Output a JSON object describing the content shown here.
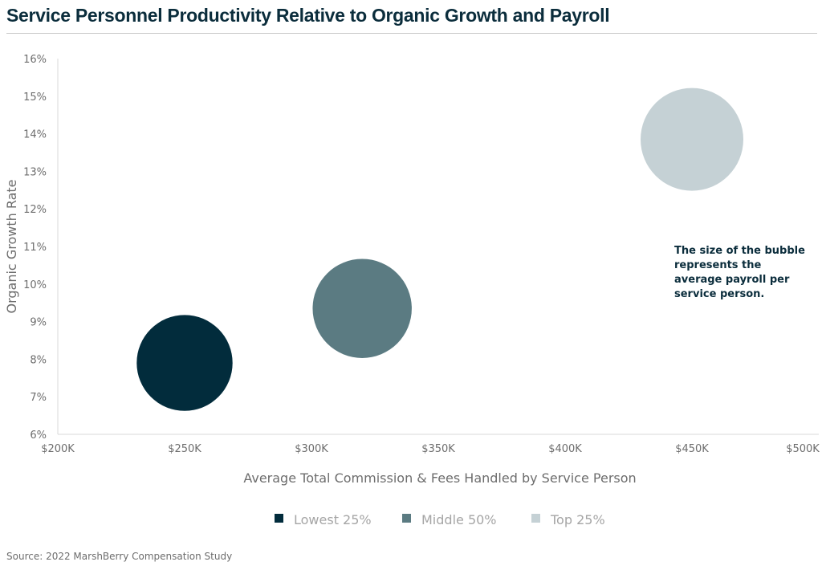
{
  "title": "Service Personnel Productivity Relative to Organic Growth and Payroll",
  "source": "Source: 2022 MarshBerry Compensation Study",
  "note_lines": [
    "The size of the bubble",
    "represents the",
    "average payroll per",
    "service person."
  ],
  "colors": {
    "title": "#0b2d3c",
    "axis_text": "#6d6d6d",
    "legend_text": "#a5a5a5"
  },
  "chart_data": {
    "type": "scatter",
    "subtype": "bubble",
    "title": "Service Personnel Productivity Relative to Organic Growth and Payroll",
    "xlabel": "Average Total Commission & Fees Handled by Service Person",
    "ylabel": "Organic Growth Rate",
    "xlim": [
      200000,
      500000
    ],
    "ylim": [
      0.06,
      0.16
    ],
    "x_ticks": [
      200000,
      250000,
      300000,
      350000,
      400000,
      450000,
      500000
    ],
    "x_tick_labels": [
      "$200K",
      "$250K",
      "$300K",
      "$350K",
      "$400K",
      "$450K",
      "$500K"
    ],
    "y_ticks": [
      0.06,
      0.07,
      0.08,
      0.09,
      0.1,
      0.11,
      0.12,
      0.13,
      0.14,
      0.15,
      0.16
    ],
    "y_tick_labels": [
      "6%",
      "7%",
      "8%",
      "9%",
      "10%",
      "11%",
      "12%",
      "13%",
      "14%",
      "15%",
      "16%"
    ],
    "grid": false,
    "legend_position": "bottom",
    "series": [
      {
        "name": "Lowest 25%",
        "x": [
          250000
        ],
        "y": [
          0.079
        ],
        "size": [
          0.87
        ],
        "color": "#022c3c"
      },
      {
        "name": "Middle 50%",
        "x": [
          320000
        ],
        "y": [
          0.0935
        ],
        "size": [
          0.93
        ],
        "color": "#5b7b82"
      },
      {
        "name": "Top 25%",
        "x": [
          450000
        ],
        "y": [
          0.1385
        ],
        "size": [
          1.0
        ],
        "color": "#c5d1d5"
      }
    ]
  }
}
